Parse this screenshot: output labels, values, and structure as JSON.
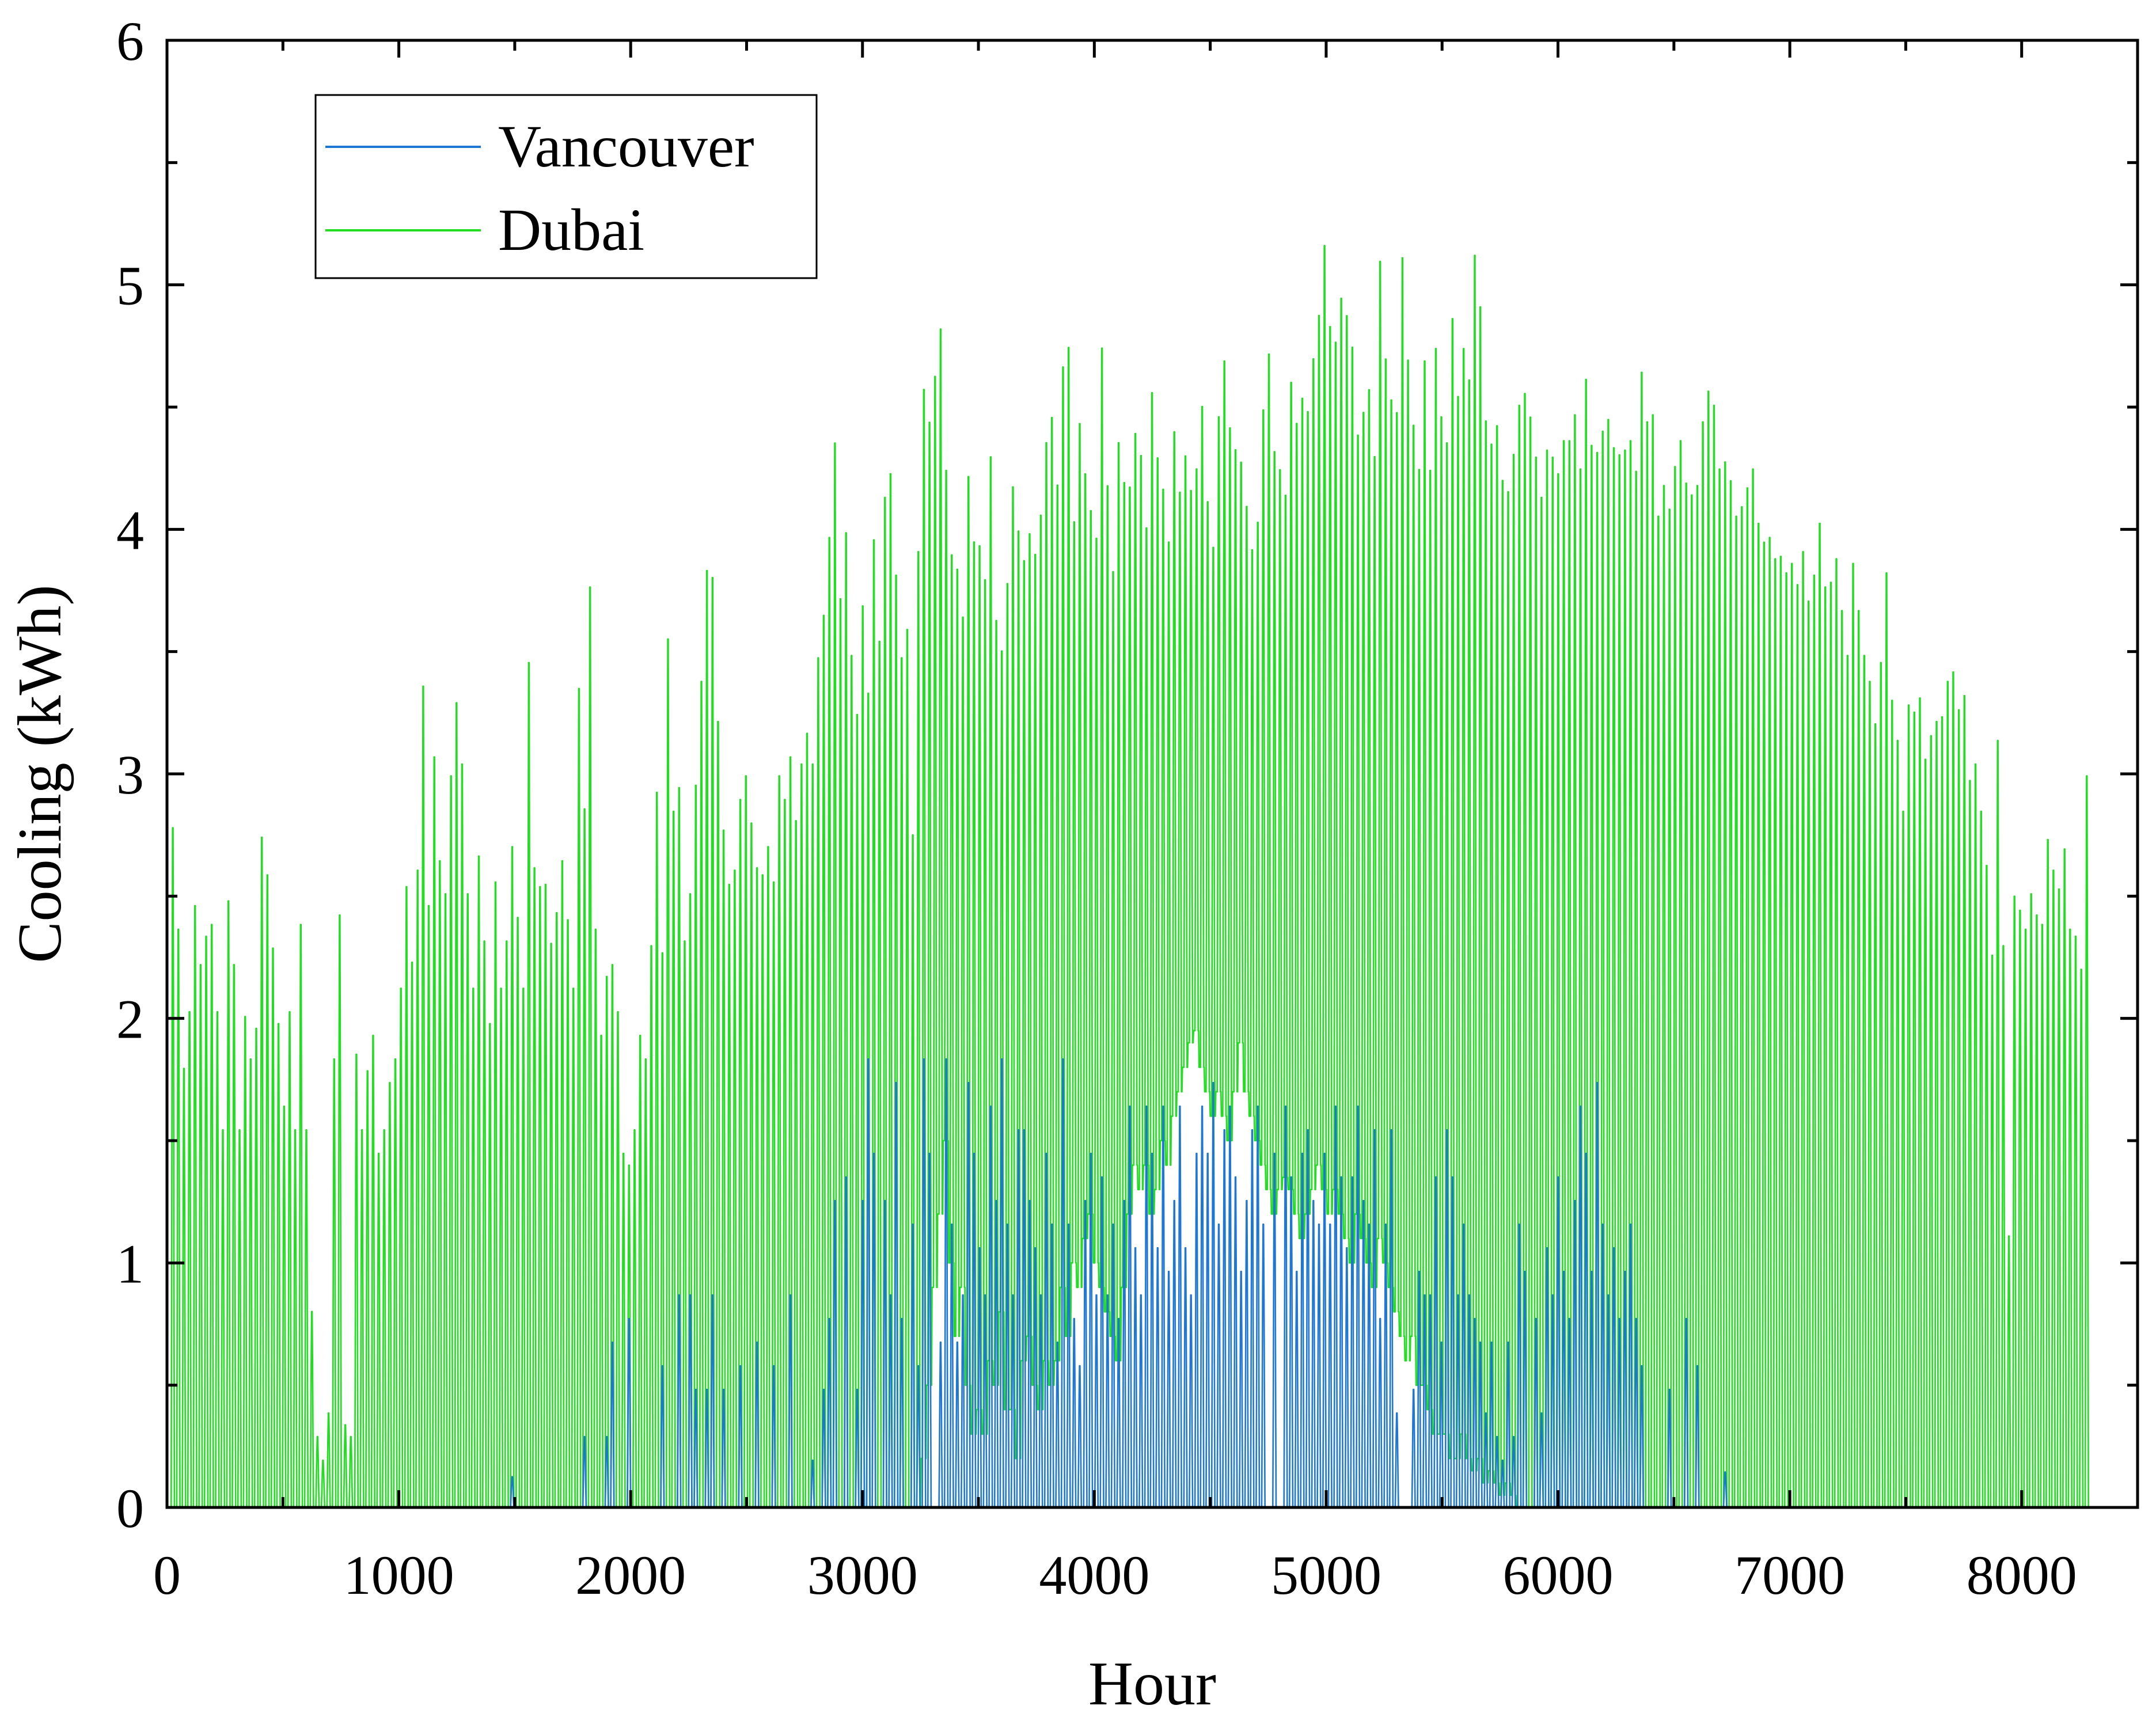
{
  "chart_data": {
    "type": "line",
    "title": "",
    "xlabel": "Hour",
    "ylabel": "Cooling (kWh)",
    "xlim": [
      0,
      8500
    ],
    "ylim": [
      0,
      6
    ],
    "x_ticks": [
      0,
      1000,
      2000,
      3000,
      4000,
      5000,
      6000,
      7000,
      8000
    ],
    "y_ticks": [
      0,
      1,
      2,
      3,
      4,
      5,
      6
    ],
    "x_tick_labels": [
      "0",
      "1000",
      "2000",
      "3000",
      "4000",
      "5000",
      "6000",
      "7000",
      "8000"
    ],
    "y_tick_labels": [
      "0",
      "1",
      "2",
      "3",
      "4",
      "5",
      "6"
    ],
    "grid": false,
    "legend_position": "top-left",
    "series": [
      {
        "name": "Vancouver",
        "color": "#1f77d4",
        "sampling": "daily peak hourly cooling, one value per 24 h starting at hour 12",
        "daily_peak": [
          0,
          0,
          0,
          0,
          0,
          0,
          0,
          0,
          0,
          0,
          0,
          0,
          0,
          0,
          0,
          0,
          0,
          0,
          0,
          0,
          0,
          0,
          0,
          0,
          0,
          0,
          0,
          0,
          0,
          0,
          0,
          0,
          0,
          0,
          0,
          0,
          0,
          0,
          0,
          0,
          0,
          0,
          0,
          0,
          0,
          0,
          0,
          0,
          0,
          0,
          0,
          0,
          0,
          0,
          0,
          0,
          0,
          0,
          0,
          0,
          0,
          0.13,
          0,
          0,
          0,
          0,
          0,
          0,
          0,
          0,
          0,
          0,
          0,
          0,
          0.3,
          0,
          0,
          0,
          0.3,
          0.7,
          0,
          0,
          0.8,
          0,
          0,
          0,
          0,
          0,
          0.6,
          0,
          0,
          0.9,
          0,
          0.9,
          0.5,
          0,
          0.5,
          0.9,
          0,
          0.5,
          0,
          0,
          0.6,
          0,
          0,
          0.7,
          0,
          0,
          0.6,
          0,
          0,
          0.9,
          0,
          0,
          0,
          0.2,
          0,
          0.5,
          0.8,
          1.3,
          0,
          1.4,
          0,
          0.5,
          1.3,
          1.9,
          1.5,
          0,
          1.3,
          0.9,
          1.8,
          0.8,
          0,
          1.2,
          0.6,
          1.9,
          1.5,
          0,
          0.7,
          1.9,
          1.2,
          0.7,
          0.9,
          1.8,
          1.5,
          1.1,
          0.9,
          1.7,
          1.3,
          1.9,
          1.2,
          0.9,
          1.6,
          1.6,
          1.3,
          1.1,
          0.9,
          1.5,
          1.2,
          0.7,
          1.9,
          1.2,
          0.8,
          0.6,
          1.3,
          1.5,
          0.9,
          1.4,
          0.9,
          1.2,
          0.8,
          1.3,
          1.7,
          1.1,
          0.9,
          1.7,
          1.5,
          1.1,
          1.7,
          1.0,
          1.3,
          1.7,
          1.1,
          0.9,
          1.5,
          1.7,
          1.5,
          1.8,
          1.2,
          1.6,
          1.7,
          1.4,
          1.0,
          1.3,
          1.6,
          1.7,
          1.2,
          0,
          1.5,
          0,
          1.7,
          1.4,
          1.0,
          1.5,
          1.6,
          1.3,
          1.2,
          1.5,
          1.2,
          1.7,
          1.4,
          1.1,
          1.4,
          1.7,
          1.3,
          1.2,
          1.6,
          0.8,
          1.2,
          1.6,
          0.4,
          0,
          0,
          0.5,
          1.0,
          0.9,
          0.9,
          1.4,
          0.7,
          1.6,
          1.4,
          0.9,
          1.2,
          0.9,
          0.8,
          0.7,
          0.4,
          0.7,
          0.3,
          0.2,
          0.7,
          0.3,
          1.2,
          1.0,
          0,
          0.8,
          0.4,
          1.1,
          0.9,
          1.4,
          1.0,
          0.8,
          1.3,
          1.7,
          1.5,
          1.0,
          1.8,
          1.2,
          0.9,
          1.1,
          0.8,
          1.0,
          1.2,
          0.8,
          0.6,
          0,
          0,
          0,
          0,
          0.5,
          0,
          0,
          0.8,
          0,
          0.6,
          0,
          0,
          0,
          0,
          0.15,
          0,
          0,
          0,
          0,
          0,
          0,
          0,
          0,
          0,
          0,
          0,
          0,
          0,
          0,
          0,
          0,
          0,
          0,
          0,
          0,
          0,
          0,
          0,
          0,
          0,
          0,
          0,
          0,
          0,
          0,
          0,
          0,
          0,
          0,
          0,
          0,
          0,
          0,
          0,
          0,
          0,
          0,
          0,
          0,
          0,
          0,
          0,
          0,
          0,
          0,
          0,
          0,
          0,
          0,
          0,
          0,
          0,
          0,
          0,
          0,
          0,
          0,
          0,
          0,
          0,
          0,
          0,
          0,
          0,
          0,
          0,
          0,
          0,
          0,
          0,
          0,
          0,
          0,
          0,
          0,
          0,
          0
        ]
      },
      {
        "name": "Dubai",
        "color": "#22dd22",
        "sampling": "daily peak and overnight minimum hourly cooling, one pair per 24 h starting at hour 12",
        "daily_peak": [
          2.88,
          2.45,
          1.86,
          2.1,
          2.55,
          2.3,
          2.42,
          2.47,
          2.1,
          1.6,
          2.57,
          2.3,
          1.6,
          2.08,
          1.9,
          2.03,
          2.84,
          2.68,
          2.37,
          2.05,
          1.7,
          2.1,
          1.6,
          2.47,
          1.6,
          0.83,
          0.3,
          0.2,
          0.4,
          1.9,
          2.51,
          0.35,
          0.3,
          1.92,
          1.6,
          1.85,
          2.0,
          1.5,
          1.6,
          1.8,
          1.9,
          2.2,
          2.63,
          2.31,
          2.7,
          3.48,
          2.55,
          3.18,
          2.74,
          2.6,
          3.1,
          3.41,
          3.15,
          2.6,
          2.2,
          2.76,
          2.4,
          2.05,
          2.65,
          2.2,
          2.4,
          2.8,
          2.5,
          2.2,
          3.58,
          2.71,
          2.63,
          2.64,
          2.39,
          2.52,
          2.74,
          2.49,
          2.2,
          3.47,
          2.96,
          3.9,
          2.45,
          2.0,
          2.25,
          2.3,
          2.1,
          1.5,
          1.45,
          1.6,
          2.0,
          1.9,
          2.38,
          3.03,
          2.35,
          3.68,
          2.95,
          3.05,
          2.4,
          2.6,
          3.06,
          3.5,
          3.97,
          3.94,
          3.33,
          2.87,
          2.64,
          2.7,
          3.0,
          3.1,
          2.9,
          2.71,
          2.68,
          2.8,
          2.65,
          3.1,
          3.0,
          3.18,
          2.91,
          3.15,
          3.28,
          3.15,
          3.6,
          3.78,
          4.11,
          4.51,
          3.85,
          4.13,
          3.61,
          3.36,
          3.82,
          3.45,
          4.1,
          3.67,
          4.28,
          4.38,
          3.95,
          3.6,
          3.72,
          2.85,
          4.05,
          4.73,
          4.58,
          4.76,
          4.95,
          4.34,
          4.0,
          3.95,
          3.74,
          4.35,
          4.08,
          4.06,
          3.92,
          4.43,
          3.74,
          3.6,
          3.9,
          4.31,
          4.13,
          3.99,
          4.1,
          4.02,
          4.19,
          4.49,
          4.6,
          4.31,
          4.8,
          4.89,
          4.14,
          4.56,
          4.34,
          4.18,
          4.07,
          4.88,
          4.3,
          3.94,
          4.49,
          4.31,
          4.28,
          4.5,
          4.41,
          4.1,
          4.68,
          4.4,
          4.26,
          4.04,
          4.5,
          4.24,
          4.39,
          4.24,
          4.33,
          4.6,
          4.2,
          4.01,
          4.56,
          4.8,
          4.52,
          4.42,
          4.36,
          4.18,
          4.0,
          4.12,
          4.6,
          4.84,
          4.43,
          4.35,
          4.24,
          4.72,
          4.55,
          4.66,
          4.6,
          4.82,
          5.0,
          5.3,
          4.96,
          4.89,
          5.08,
          5.01,
          4.88,
          4.5,
          4.6,
          4.7,
          4.42,
          5.24,
          4.83,
          4.66,
          4.61,
          5.27,
          4.84,
          4.56,
          4.38,
          4.84,
          4.38,
          4.9,
          4.61,
          4.5,
          5.03,
          4.7,
          4.9,
          4.77,
          5.3,
          5.08,
          4.6,
          4.5,
          4.58,
          4.35,
          4.3,
          4.46,
          4.67,
          4.72,
          4.62,
          4.45,
          4.28,
          4.48,
          4.45,
          4.38,
          4.52,
          4.52,
          4.63,
          4.4,
          4.78,
          4.5,
          4.47,
          4.56,
          4.61,
          4.49,
          4.46,
          4.48,
          4.52,
          4.39,
          4.81,
          4.6,
          4.63,
          4.2,
          4.33,
          4.23,
          4.41,
          4.52,
          4.34,
          4.29,
          4.33,
          4.6,
          4.73,
          4.67,
          4.4,
          4.43,
          4.35,
          4.2,
          4.24,
          4.32,
          4.4,
          4.17,
          4.09,
          4.11,
          4.02,
          4.03,
          3.96,
          4.0,
          3.91,
          4.05,
          3.84,
          3.95,
          4.17,
          3.9,
          3.92,
          4.02,
          3.8,
          3.61,
          4.0,
          3.8,
          3.61,
          3.5,
          3.32,
          3.58,
          3.96,
          3.42,
          3.25,
          2.95,
          3.4,
          3.37,
          3.43,
          3.17,
          3.27,
          3.33,
          3.35,
          3.5,
          3.54,
          3.38,
          3.44,
          3.08,
          3.15,
          2.95,
          2.72,
          2.34,
          3.25,
          2.38,
          1.15,
          2.59,
          2.53,
          2.45,
          2.6,
          2.51,
          2.47,
          2.83,
          2.7,
          2.62,
          2.79,
          2.45,
          2.42,
          2.28,
          3.1
        ],
        "daily_min": [
          0,
          0,
          0,
          0,
          0,
          0,
          0,
          0,
          0,
          0,
          0,
          0,
          0,
          0,
          0,
          0,
          0,
          0,
          0,
          0,
          0,
          0,
          0,
          0,
          0,
          0,
          0,
          0,
          0,
          0,
          0,
          0,
          0,
          0,
          0,
          0,
          0,
          0,
          0,
          0,
          0,
          0,
          0,
          0,
          0,
          0,
          0,
          0,
          0,
          0,
          0,
          0,
          0,
          0,
          0,
          0,
          0,
          0,
          0,
          0,
          0,
          0,
          0,
          0,
          0,
          0,
          0,
          0,
          0,
          0,
          0,
          0,
          0,
          0,
          0,
          0,
          0,
          0,
          0,
          0,
          0,
          0,
          0,
          0,
          0,
          0,
          0,
          0,
          0,
          0,
          0,
          0,
          0,
          0,
          0,
          0,
          0,
          0,
          0,
          0,
          0,
          0,
          0,
          0,
          0,
          0,
          0,
          0,
          0,
          0,
          0,
          0,
          0,
          0,
          0,
          0,
          0,
          0,
          0,
          0,
          0,
          0,
          0,
          0,
          0,
          0,
          0,
          0,
          0,
          0,
          0,
          0,
          0,
          0,
          0,
          0.2,
          0.5,
          0.9,
          1.2,
          1.5,
          1.0,
          0.7,
          0.9,
          0.5,
          0.3,
          0.4,
          0.3,
          0.6,
          0.5,
          0.8,
          0.4,
          0.4,
          0.2,
          0.6,
          0.7,
          0.5,
          0.4,
          0.6,
          0.5,
          0.6,
          0.9,
          0.7,
          1.0,
          0.9,
          1.1,
          1.2,
          1.0,
          0.9,
          0.8,
          0.7,
          0.6,
          0.9,
          1.2,
          1.4,
          1.3,
          1.4,
          1.2,
          1.3,
          1.5,
          1.4,
          1.6,
          1.7,
          1.8,
          1.9,
          1.95,
          1.8,
          1.7,
          1.6,
          1.7,
          1.6,
          1.5,
          1.7,
          1.9,
          1.7,
          1.6,
          1.5,
          1.4,
          1.3,
          1.2,
          1.3,
          1.35,
          1.3,
          1.2,
          1.1,
          1.2,
          1.3,
          1.4,
          1.3,
          1.2,
          1.3,
          1.2,
          1.1,
          1.0,
          1.2,
          1.1,
          1.0,
          0.9,
          1.1,
          1.0,
          0.9,
          0.8,
          0.7,
          0.6,
          0.7,
          0.5,
          0.5,
          0.4,
          0.3,
          0.3,
          0.3,
          0.2,
          0.2,
          0.3,
          0.2,
          0.15,
          0.2,
          0.1,
          0.15,
          0.1,
          0.05,
          0.1,
          0.05,
          0,
          0,
          0,
          0,
          0,
          0,
          0,
          0,
          0,
          0,
          0,
          0,
          0,
          0,
          0,
          0,
          0,
          0,
          0,
          0,
          0,
          0,
          0,
          0,
          0,
          0,
          0,
          0,
          0,
          0,
          0,
          0,
          0,
          0,
          0,
          0,
          0,
          0,
          0,
          0,
          0,
          0,
          0,
          0,
          0,
          0,
          0,
          0,
          0,
          0,
          0,
          0,
          0,
          0,
          0,
          0,
          0,
          0,
          0,
          0,
          0,
          0,
          0,
          0,
          0,
          0,
          0,
          0,
          0,
          0,
          0,
          0,
          0,
          0,
          0,
          0,
          0,
          0,
          0,
          0,
          0,
          0,
          0,
          0,
          0,
          0,
          0,
          0,
          0,
          0,
          0,
          0,
          0,
          0,
          0,
          0,
          0,
          0,
          0,
          0,
          0,
          0,
          0,
          0,
          0,
          0,
          0,
          0,
          0,
          0,
          0,
          0,
          0,
          0,
          0,
          0,
          0,
          0,
          0,
          0,
          0,
          0,
          0,
          0,
          0,
          0,
          0,
          0,
          0,
          0,
          0,
          0,
          0,
          0,
          0,
          0,
          0,
          0,
          0,
          0,
          0
        ]
      }
    ]
  }
}
